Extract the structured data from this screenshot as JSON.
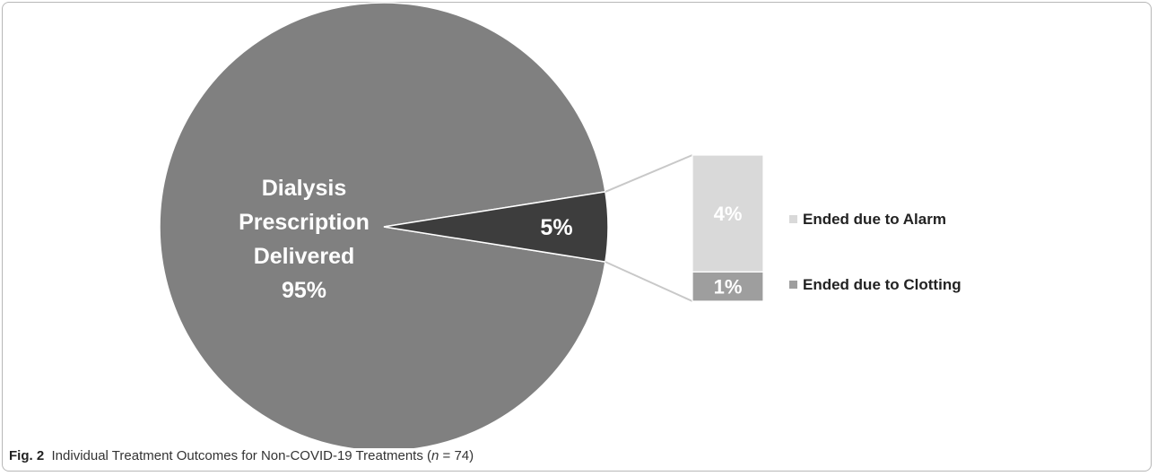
{
  "chart_data": {
    "type": "pie",
    "title": "",
    "main_pie": {
      "slices": [
        {
          "label": "Dialysis Prescription Delivered",
          "value": 95,
          "value_text": "95%",
          "color": "#808080"
        },
        {
          "label": "",
          "value": 5,
          "value_text": "5%",
          "color": "#3d3d3d"
        }
      ]
    },
    "breakdown_bar": {
      "of_slice": "5%",
      "segments": [
        {
          "label": "Ended due to Alarm",
          "value": 4,
          "value_text": "4%",
          "color": "#d9d9d9"
        },
        {
          "label": "Ended due to Clotting",
          "value": 1,
          "value_text": "1%",
          "color": "#9e9e9e"
        }
      ]
    },
    "legend_position": "right",
    "center_label_lines": [
      "Dialysis",
      "Prescription",
      "Delivered",
      "95%"
    ]
  },
  "caption": {
    "fig_label": "Fig. 2",
    "text_before_n": "Individual Treatment Outcomes for Non-COVID-19 Treatments (",
    "n_symbol": "n",
    "text_after_n": " = 74)"
  }
}
